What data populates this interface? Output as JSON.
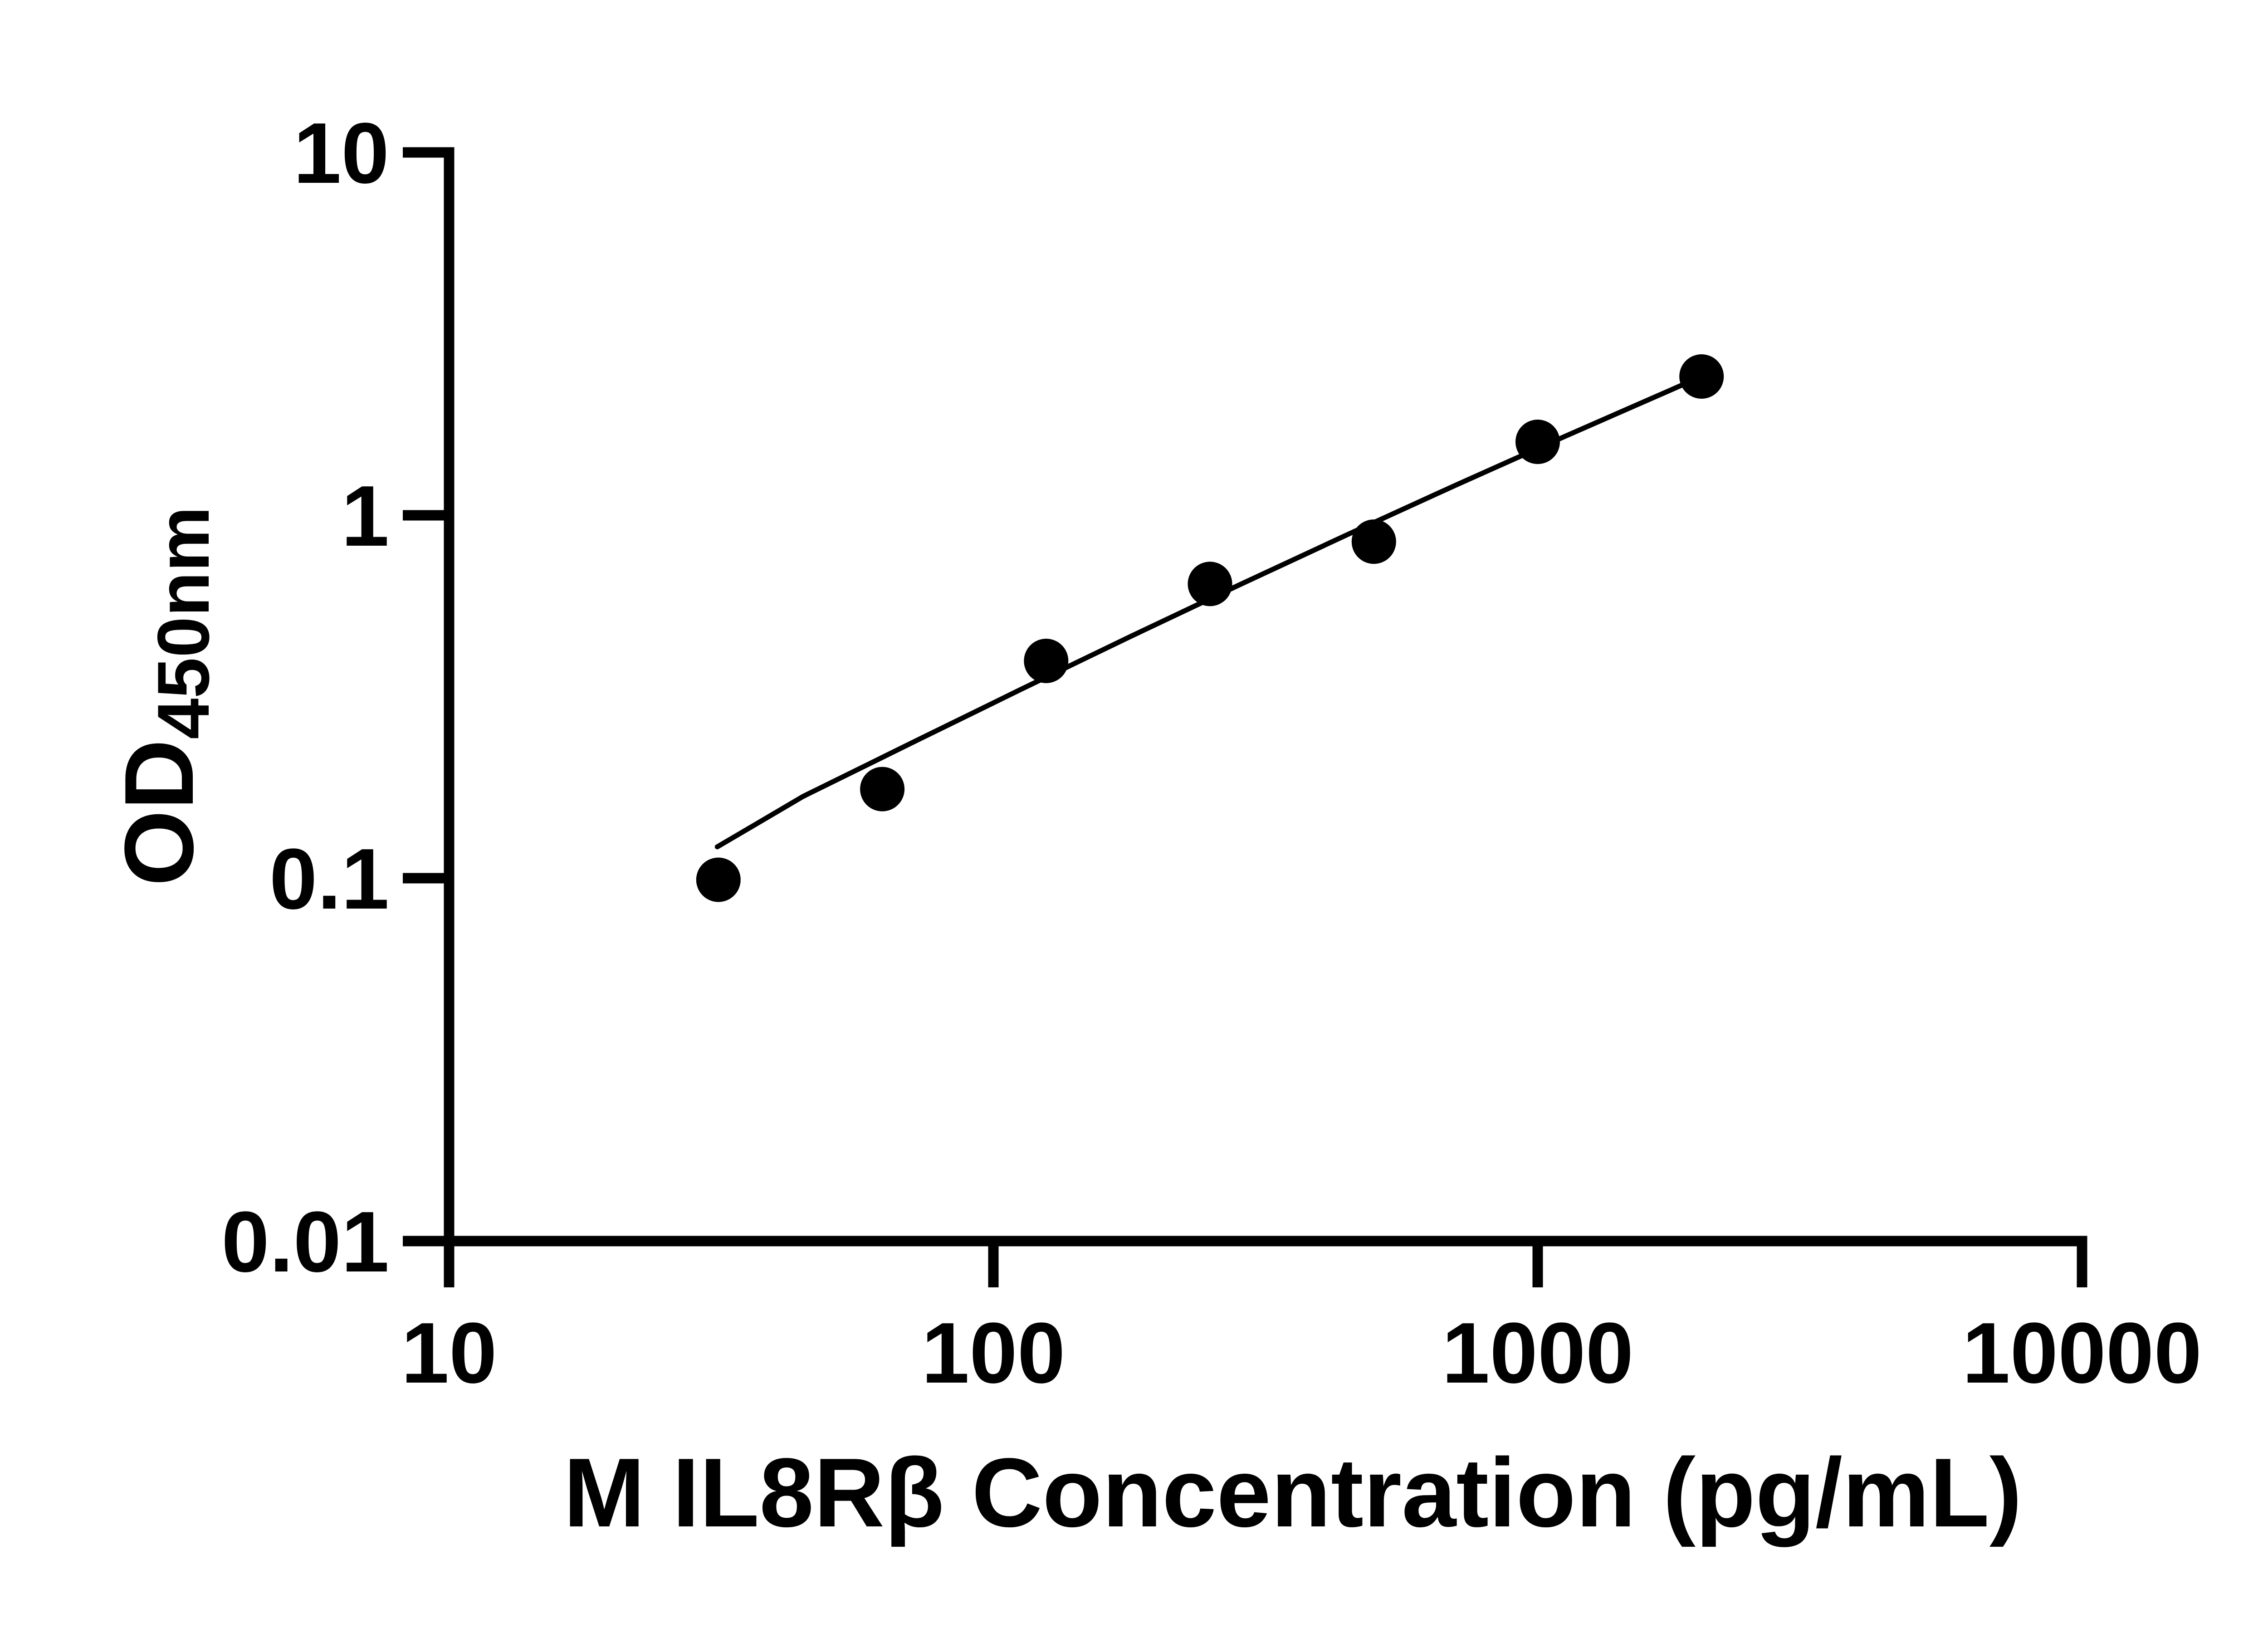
{
  "figure": {
    "background_color": "#ffffff",
    "ink_color": "#000000"
  },
  "chart_data": {
    "type": "scatter",
    "title": "",
    "xlabel": "M IL8Rβ Concentration (pg/mL)",
    "ylabel": "OD",
    "ylabel_subscript": "450nm",
    "x_scale": "log10",
    "y_scale": "log10",
    "xlim": [
      10,
      10000
    ],
    "ylim": [
      0.01,
      10
    ],
    "grid": false,
    "legend": "none",
    "x_ticks": [
      {
        "value": 10,
        "label": "10"
      },
      {
        "value": 100,
        "label": "100"
      },
      {
        "value": 1000,
        "label": "1000"
      },
      {
        "value": 10000,
        "label": "10000"
      }
    ],
    "y_ticks": [
      {
        "value": 10,
        "label": "10"
      },
      {
        "value": 1,
        "label": "1"
      },
      {
        "value": 0.1,
        "label": "0.1"
      },
      {
        "value": 0.01,
        "label": "0.01"
      }
    ],
    "series": [
      {
        "name": "standards",
        "kind": "scatter",
        "marker": "filled-circle",
        "points": [
          {
            "x": 31.25,
            "y": 0.099
          },
          {
            "x": 62.5,
            "y": 0.176
          },
          {
            "x": 125,
            "y": 0.397
          },
          {
            "x": 250,
            "y": 0.647
          },
          {
            "x": 500,
            "y": 0.846
          },
          {
            "x": 1000,
            "y": 1.594
          },
          {
            "x": 2000,
            "y": 2.413
          }
        ]
      },
      {
        "name": "fit-line",
        "kind": "line",
        "points": [
          {
            "x": 31.1,
            "y": 0.122
          },
          {
            "x": 44.7,
            "y": 0.168
          },
          {
            "x": 70.8,
            "y": 0.236
          },
          {
            "x": 112.2,
            "y": 0.331
          },
          {
            "x": 177.8,
            "y": 0.462
          },
          {
            "x": 281.8,
            "y": 0.641
          },
          {
            "x": 446.7,
            "y": 0.884
          },
          {
            "x": 707.9,
            "y": 1.212
          },
          {
            "x": 1122,
            "y": 1.65
          },
          {
            "x": 2000,
            "y": 2.413
          }
        ]
      }
    ]
  }
}
